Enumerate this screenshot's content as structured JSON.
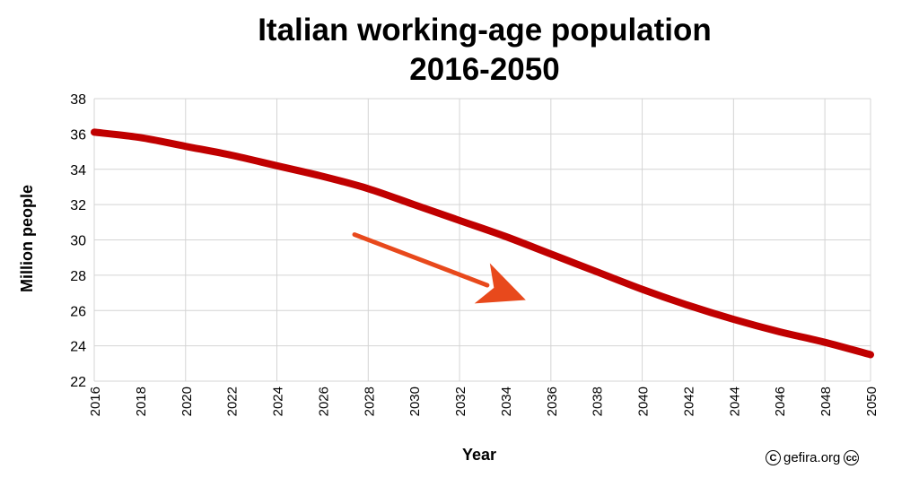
{
  "chart_data": {
    "type": "line",
    "title": "Italian working-age population",
    "subtitle": "2016-2050",
    "xlabel": "Year",
    "ylabel": "Million people",
    "xlim": [
      2016,
      2050
    ],
    "ylim": [
      22,
      38
    ],
    "x_ticks": [
      "2016",
      "2018",
      "2020",
      "2022",
      "2024",
      "2026",
      "2028",
      "2030",
      "2032",
      "2034",
      "2036",
      "2038",
      "2040",
      "2042",
      "2044",
      "2046",
      "2048",
      "2050"
    ],
    "y_ticks": [
      "22",
      "24",
      "26",
      "28",
      "30",
      "32",
      "34",
      "36",
      "38"
    ],
    "grid": true,
    "series": [
      {
        "color": "#c00000",
        "x": [
          2016,
          2018,
          2020,
          2022,
          2024,
          2026,
          2028,
          2030,
          2032,
          2034,
          2036,
          2038,
          2040,
          2042,
          2044,
          2046,
          2048,
          2050
        ],
        "values": [
          36.1,
          35.8,
          35.3,
          34.8,
          34.2,
          33.6,
          32.9,
          32.0,
          31.1,
          30.2,
          29.2,
          28.2,
          27.2,
          26.3,
          25.5,
          24.8,
          24.2,
          23.5
        ]
      }
    ],
    "annotations": [
      {
        "type": "arrow",
        "color": "#e8491c",
        "x_from": 2027.4,
        "y_from": 30.3,
        "x_to": 2034.9,
        "y_to": 26.6
      }
    ]
  },
  "credit": {
    "site": "gefira.org",
    "left_symbol": "C",
    "right_symbol": "cc"
  }
}
